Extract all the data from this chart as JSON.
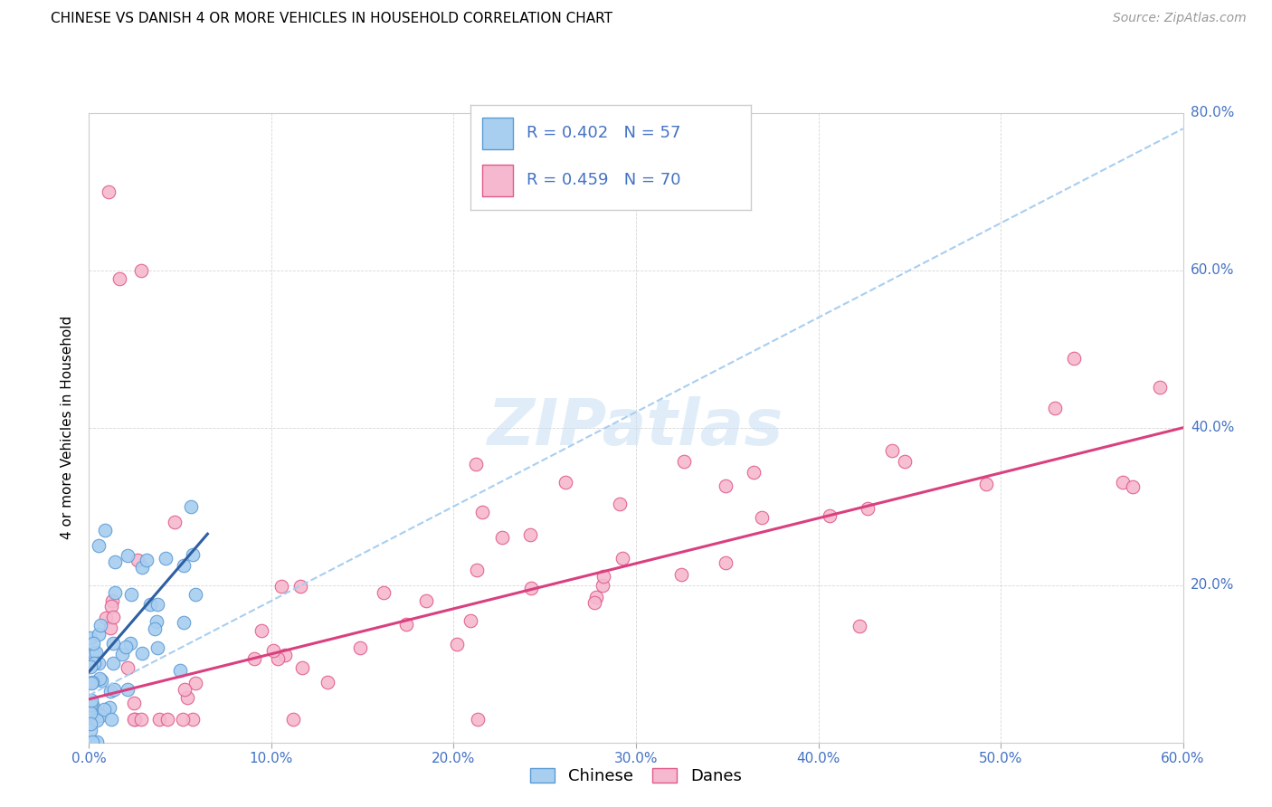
{
  "title": "CHINESE VS DANISH 4 OR MORE VEHICLES IN HOUSEHOLD CORRELATION CHART",
  "source": "Source: ZipAtlas.com",
  "ylabel": "4 or more Vehicles in Household",
  "xlim": [
    0.0,
    0.6
  ],
  "ylim": [
    0.0,
    0.8
  ],
  "xticks": [
    0.0,
    0.1,
    0.2,
    0.3,
    0.4,
    0.5,
    0.6
  ],
  "yticks": [
    0.2,
    0.4,
    0.6,
    0.8
  ],
  "xtick_labels": [
    "0.0%",
    "10.0%",
    "20.0%",
    "30.0%",
    "40.0%",
    "50.0%",
    "60.0%"
  ],
  "ytick_labels": [
    "20.0%",
    "40.0%",
    "60.0%",
    "80.0%"
  ],
  "chinese_color": "#A8CEF0",
  "danish_color": "#F5B8CE",
  "chinese_edge": "#5B9BD5",
  "danish_edge": "#E05A8A",
  "trendline_chinese_color": "#2E5FA3",
  "trendline_danish_color": "#D94080",
  "dashed_color": "#A8CEF0",
  "R_chinese": 0.402,
  "N_chinese": 57,
  "R_danish": 0.459,
  "N_danish": 70,
  "watermark": "ZIPatlas",
  "legend_label_chinese": "Chinese",
  "legend_label_danish": "Danes",
  "tick_color": "#4472C4",
  "title_fontsize": 11,
  "source_fontsize": 10,
  "axis_label_fontsize": 11,
  "tick_fontsize": 11,
  "legend_fontsize": 13
}
